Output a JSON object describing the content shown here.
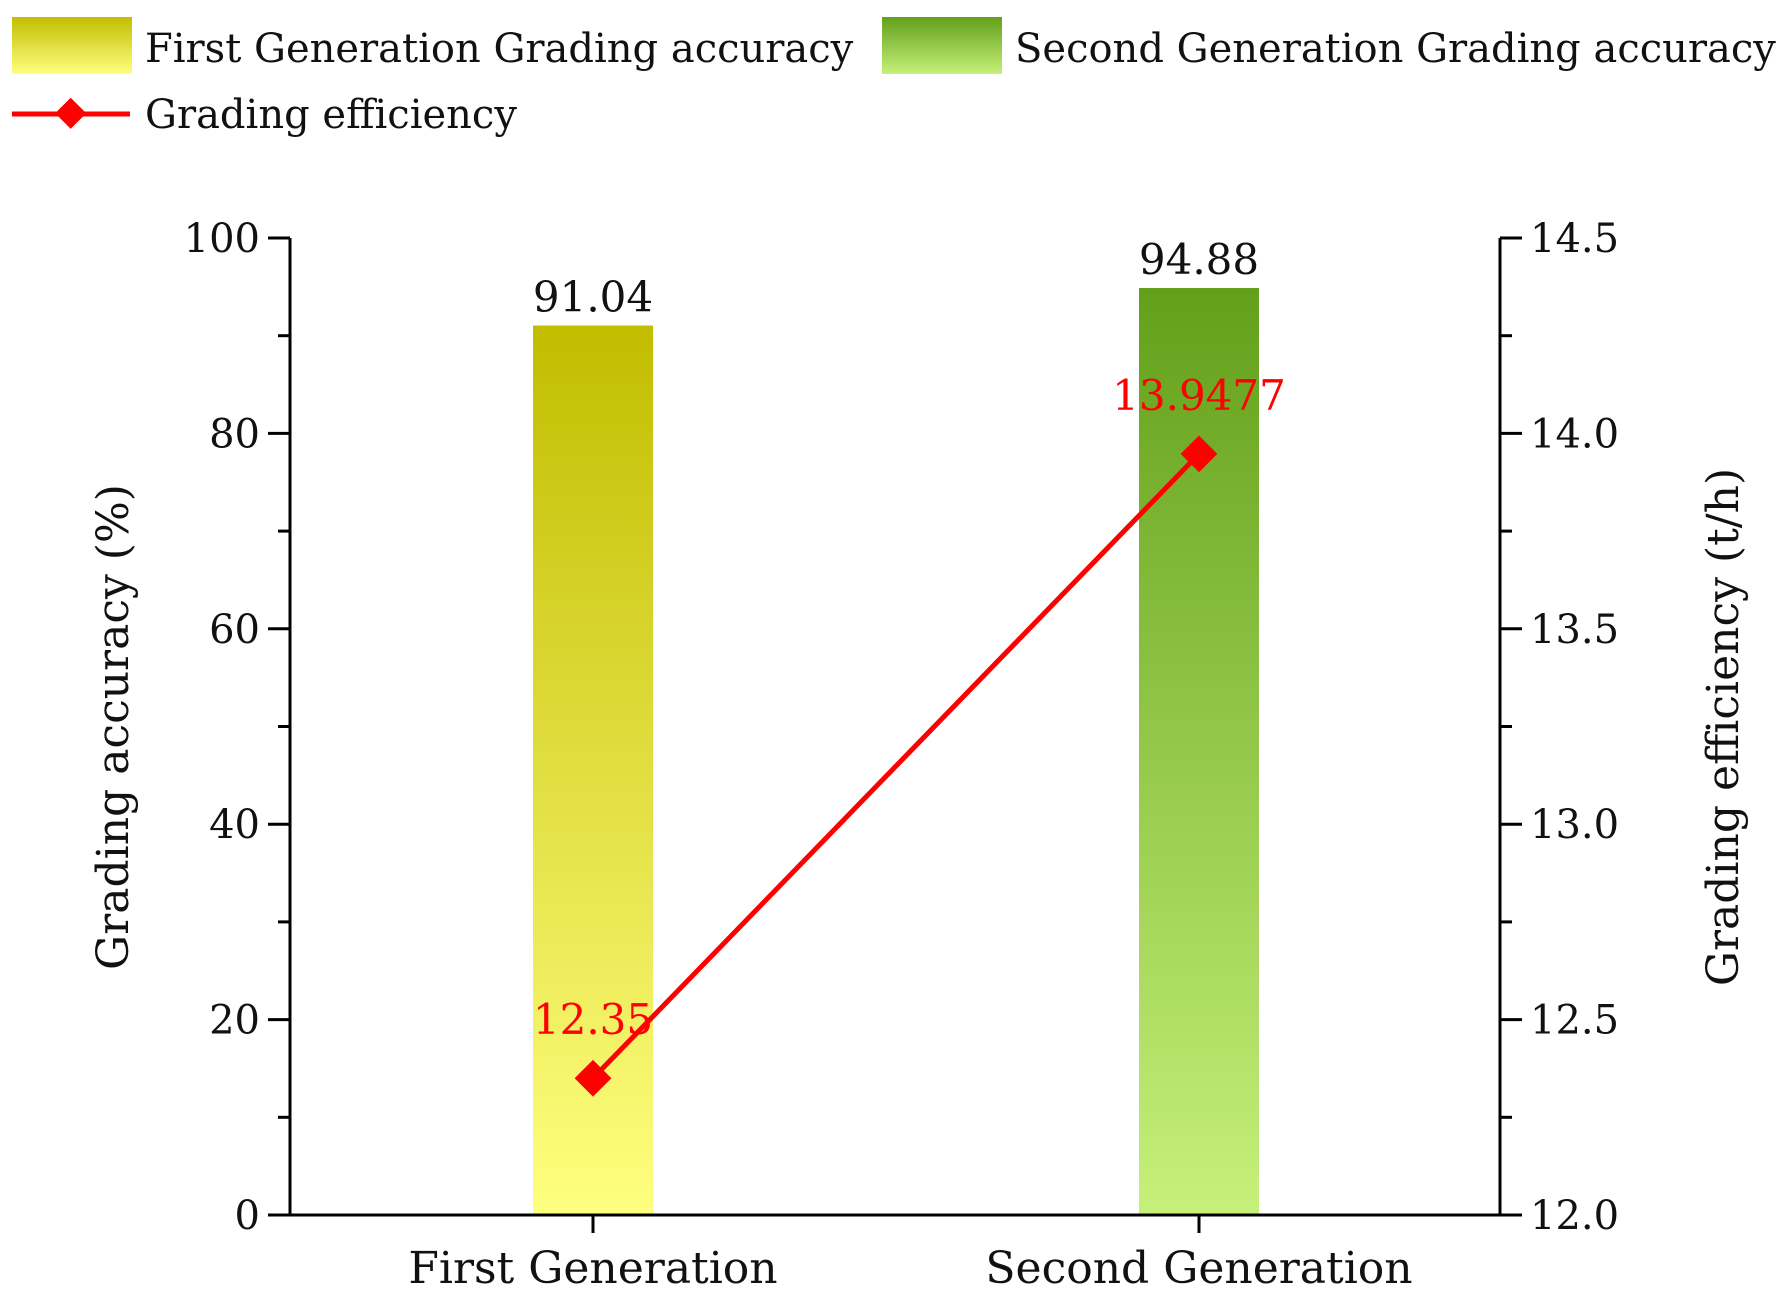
{
  "colors": {
    "first_top": "#c2bd00",
    "first_bottom": "#ffff80",
    "second_top": "#62a01a",
    "second_bottom": "#c6f07a",
    "line": "#ff0000",
    "axis": "#000000"
  },
  "legend": {
    "first": "First Generation Grading accuracy",
    "second": "Second Generation Grading accuracy",
    "efficiency": "Grading efficiency"
  },
  "chart_data": {
    "type": "bar",
    "categories": [
      "First Generation",
      "Second Generation"
    ],
    "series": [
      {
        "name": "Grading accuracy",
        "axis": "left",
        "type": "bar",
        "values": [
          91.04,
          94.88
        ],
        "labels": [
          "91.04",
          "94.88"
        ]
      },
      {
        "name": "Grading efficiency",
        "axis": "right",
        "type": "line",
        "values": [
          12.35,
          13.9477
        ],
        "labels": [
          "12.35",
          "13.9477"
        ]
      }
    ],
    "ylabel": "Grading accuracy (%)",
    "ylim": [
      0,
      100
    ],
    "yticks": [
      0,
      20,
      40,
      60,
      80,
      100
    ],
    "ylabel_right": "Grading efficiency (t/h)",
    "ylim_right": [
      12.0,
      14.5
    ],
    "yticks_right": [
      "12.0",
      "12.5",
      "13.0",
      "13.5",
      "14.0",
      "14.5"
    ]
  }
}
